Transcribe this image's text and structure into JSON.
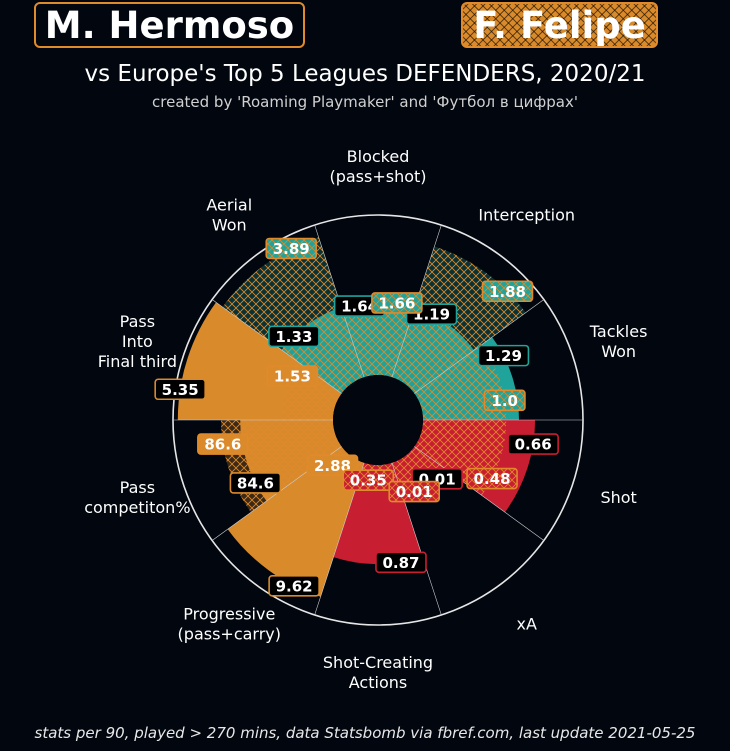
{
  "header": {
    "player1": "M. Hermoso",
    "player2": "F. Felipe",
    "subtitle": "vs Europe's Top 5 Leagues DEFENDERS, 2020/21",
    "credit": "created by 'Roaming Playmaker' and 'Футбол в цифрах'"
  },
  "footer": "stats per 90, played > 270 mins, data Statsbomb via fbref.com, last update 2021-05-25",
  "colors": {
    "background": "#02060f",
    "attacking": "#c81e32",
    "defending": "#1fa39a",
    "possession": "#d98a2b",
    "player2_hatch": "#e08a2a"
  },
  "chart_data": {
    "type": "pie",
    "subtype": "polar-bar comparison (pizza chart)",
    "categories": [
      {
        "label": "Tackles\nWon",
        "group": "defending",
        "p1_value": "1.29",
        "p1_pct": 0.6,
        "p2_value": "1.0",
        "p2_pct": 0.52
      },
      {
        "label": "Interception",
        "group": "defending",
        "p1_value": "1.19",
        "p1_pct": 0.46,
        "p2_value": "1.88",
        "p2_pct": 0.86
      },
      {
        "label": "Blocked\n(pass+shot)",
        "group": "defending",
        "p1_value": "1.64",
        "p1_pct": 0.44,
        "p2_value": "1.66",
        "p2_pct": 0.46
      },
      {
        "label": "Aerial\nWon",
        "group": "defending",
        "p1_value": "1.33",
        "p1_pct": 0.46,
        "p2_value": "3.89",
        "p2_pct": 0.92
      },
      {
        "label": "Pass\nInto\nFinal third",
        "group": "possession",
        "p1_value": "5.35",
        "p1_pct": 0.97,
        "p2_value": "1.53",
        "p2_pct": 0.32
      },
      {
        "label": "Pass\ncompetiton%",
        "group": "possession",
        "p1_value": "84.6",
        "p1_pct": 0.58,
        "p2_value": "86.6",
        "p2_pct": 0.7
      },
      {
        "label": "Progressive\n(pass+carry)",
        "group": "possession",
        "p1_value": "9.62",
        "p1_pct": 0.88,
        "p2_value": "2.88",
        "p2_pct": 0.12
      },
      {
        "label": "Shot-Creating\nActions",
        "group": "attacking",
        "p1_value": "0.87",
        "p1_pct": 0.62,
        "p2_value": "0.35",
        "p2_pct": 0.1
      },
      {
        "label": "xA",
        "group": "attacking",
        "p1_value": "0.01",
        "p1_pct": 0.24,
        "p2_value": "0.01",
        "p2_pct": 0.22
      },
      {
        "label": "Shot",
        "group": "attacking",
        "p1_value": "0.66",
        "p1_pct": 0.7,
        "p2_value": "0.48",
        "p2_pct": 0.52
      }
    ]
  }
}
